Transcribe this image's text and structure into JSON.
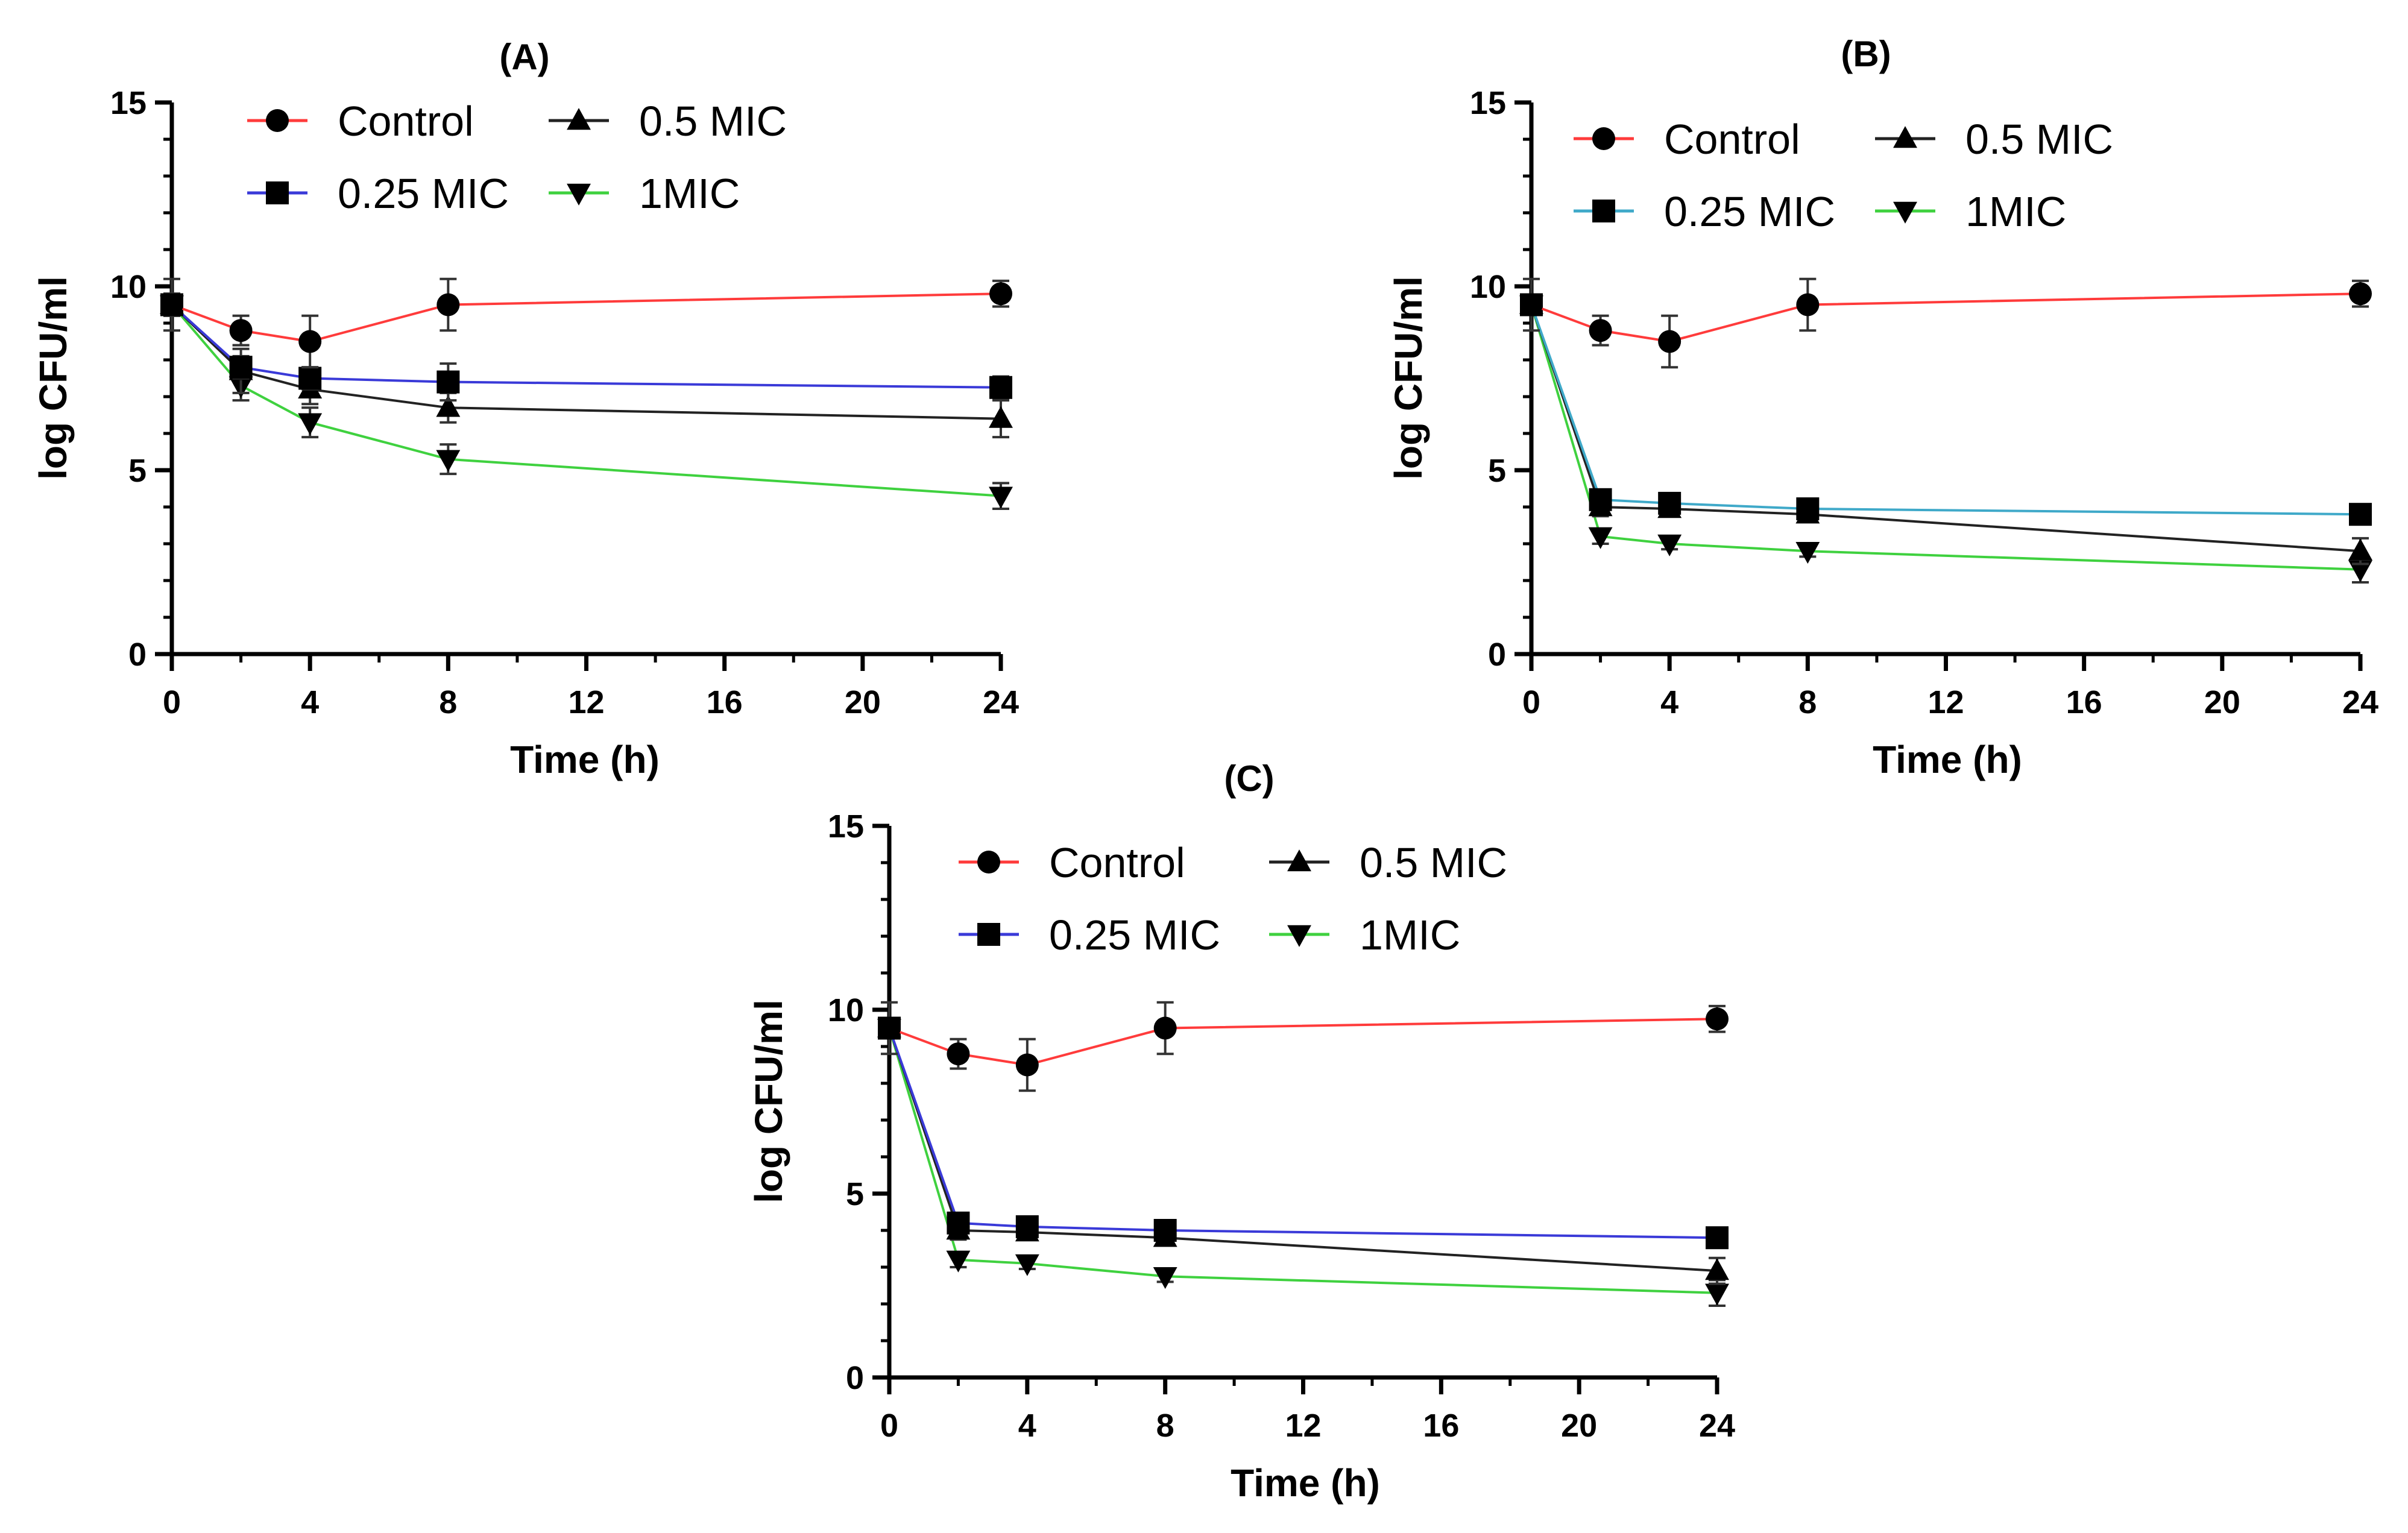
{
  "chart_data": [
    {
      "type": "line",
      "title": "(A)",
      "xlabel": "Time (h)",
      "ylabel": "log CFU/ml",
      "xlim": [
        0,
        24
      ],
      "ylim": [
        0,
        15
      ],
      "xticks": [
        "0",
        "4",
        "8",
        "12",
        "16",
        "20",
        "24"
      ],
      "yticks": [
        "0",
        "5",
        "10",
        "15"
      ],
      "legend_position": "top",
      "x": [
        0,
        2,
        4,
        8,
        24
      ],
      "series": [
        {
          "name": "Control",
          "color": "#ff3b3b",
          "marker": "circle",
          "values": [
            9.5,
            8.8,
            8.5,
            9.5,
            9.8
          ],
          "errors": [
            0.7,
            0.4,
            0.7,
            0.7,
            0.35
          ]
        },
        {
          "name": "0.25 MIC",
          "color": "#3a3ad8",
          "marker": "square",
          "values": [
            9.5,
            7.8,
            7.5,
            7.4,
            7.25
          ],
          "errors": [
            0.3,
            0.3,
            0.3,
            0.5,
            0.3
          ]
        },
        {
          "name": "0.5 MIC",
          "color": "#222222",
          "marker": "triangle-up",
          "values": [
            9.5,
            7.7,
            7.2,
            6.7,
            6.4
          ],
          "errors": [
            0.3,
            0.6,
            0.4,
            0.4,
            0.5
          ]
        },
        {
          "name": "1MIC",
          "color": "#3fd13f",
          "marker": "triangle-down",
          "values": [
            9.5,
            7.3,
            6.3,
            5.3,
            4.3
          ],
          "errors": [
            0.3,
            0.4,
            0.4,
            0.4,
            0.35
          ]
        }
      ]
    },
    {
      "type": "line",
      "title": "(B)",
      "xlabel": "Time (h)",
      "ylabel": "log CFU/ml",
      "xlim": [
        0,
        24
      ],
      "ylim": [
        0,
        15
      ],
      "xticks": [
        "0",
        "4",
        "8",
        "12",
        "16",
        "20",
        "24"
      ],
      "yticks": [
        "0",
        "5",
        "10",
        "15"
      ],
      "legend_position": "top",
      "x": [
        0,
        2,
        4,
        8,
        24
      ],
      "series": [
        {
          "name": "Control",
          "color": "#ff3b3b",
          "marker": "circle",
          "values": [
            9.5,
            8.8,
            8.5,
            9.5,
            9.8
          ],
          "errors": [
            0.7,
            0.4,
            0.7,
            0.7,
            0.35
          ]
        },
        {
          "name": "0.25 MIC",
          "color": "#3fa9c9",
          "marker": "square",
          "values": [
            9.5,
            4.2,
            4.1,
            3.95,
            3.8
          ],
          "errors": [
            0.2,
            0.25,
            0.25,
            0.25,
            0.2
          ]
        },
        {
          "name": "0.5 MIC",
          "color": "#222222",
          "marker": "triangle-up",
          "values": [
            9.5,
            4.0,
            3.95,
            3.8,
            2.8
          ],
          "errors": [
            0.2,
            0.25,
            0.2,
            0.2,
            0.35
          ]
        },
        {
          "name": "1MIC",
          "color": "#3fd13f",
          "marker": "triangle-down",
          "values": [
            9.5,
            3.2,
            3.0,
            2.8,
            2.3
          ],
          "errors": [
            0.2,
            0.2,
            0.15,
            0.15,
            0.35
          ]
        }
      ]
    },
    {
      "type": "line",
      "title": "(C)",
      "xlabel": "Time (h)",
      "ylabel": "log CFU/ml",
      "xlim": [
        0,
        24
      ],
      "ylim": [
        0,
        15
      ],
      "xticks": [
        "0",
        "4",
        "8",
        "12",
        "16",
        "20",
        "24"
      ],
      "yticks": [
        "0",
        "5",
        "10",
        "15"
      ],
      "legend_position": "top",
      "x": [
        0,
        2,
        4,
        8,
        24
      ],
      "series": [
        {
          "name": "Control",
          "color": "#ff3b3b",
          "marker": "circle",
          "values": [
            9.5,
            8.8,
            8.5,
            9.5,
            9.75
          ],
          "errors": [
            0.7,
            0.4,
            0.7,
            0.7,
            0.35
          ]
        },
        {
          "name": "0.25 MIC",
          "color": "#3a3ad8",
          "marker": "square",
          "values": [
            9.5,
            4.2,
            4.1,
            4.0,
            3.8
          ],
          "errors": [
            0.2,
            0.25,
            0.25,
            0.25,
            0.2
          ]
        },
        {
          "name": "0.5 MIC",
          "color": "#222222",
          "marker": "triangle-up",
          "values": [
            9.5,
            4.0,
            3.95,
            3.8,
            2.9
          ],
          "errors": [
            0.2,
            0.25,
            0.2,
            0.2,
            0.35
          ]
        },
        {
          "name": "1MIC",
          "color": "#3fd13f",
          "marker": "triangle-down",
          "values": [
            9.5,
            3.2,
            3.1,
            2.75,
            2.3
          ],
          "errors": [
            0.2,
            0.2,
            0.15,
            0.15,
            0.35
          ]
        }
      ]
    }
  ]
}
